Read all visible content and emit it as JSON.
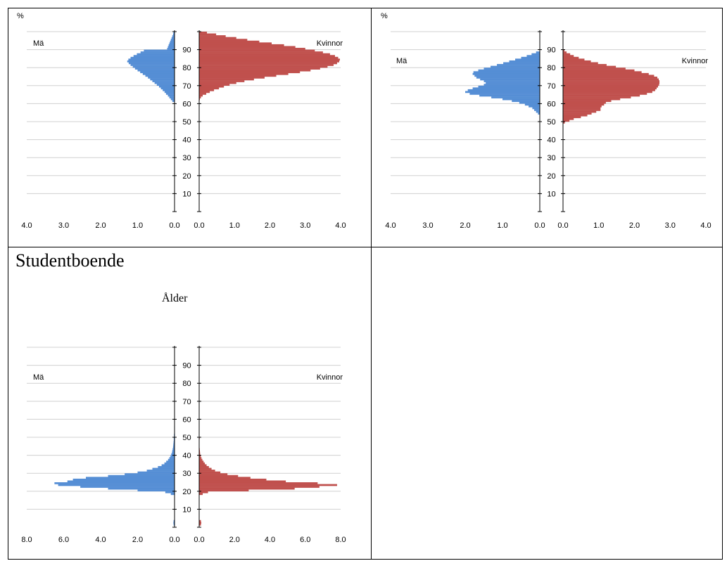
{
  "colors": {
    "men": "#558ed5",
    "women": "#c0504d",
    "grid": "#d0d0d0",
    "axis": "#000000"
  },
  "panels": [
    {
      "cell_title": "",
      "axis_title": "",
      "unit_label": "%",
      "men_label": "Mä",
      "women_label": "Kvinnor",
      "y_ticks": [
        "10",
        "20",
        "30",
        "40",
        "50",
        "60",
        "70",
        "80",
        "90"
      ],
      "x_ticks_left": [
        "4.0",
        "3.0",
        "2.0",
        "1.0",
        "0.0"
      ],
      "x_ticks_right": [
        "0.0",
        "1.0",
        "2.0",
        "3.0",
        "4.0"
      ]
    },
    {
      "cell_title": "",
      "axis_title": "",
      "unit_label": "%",
      "men_label": "Mä",
      "women_label": "Kvinnor",
      "y_ticks": [
        "10",
        "20",
        "30",
        "40",
        "50",
        "60",
        "70",
        "80",
        "90"
      ],
      "x_ticks_left": [
        "4.0",
        "3.0",
        "2.0",
        "1.0",
        "0.0"
      ],
      "x_ticks_right": [
        "0.0",
        "1.0",
        "2.0",
        "3.0",
        "4.0"
      ]
    },
    {
      "cell_title": "Studentboende",
      "axis_title": "Ålder",
      "unit_label": "",
      "men_label": "Mä",
      "women_label": "Kvinnor",
      "y_ticks": [
        "10",
        "20",
        "30",
        "40",
        "50",
        "60",
        "70",
        "80",
        "90"
      ],
      "x_ticks_left": [
        "8.0",
        "6.0",
        "4.0",
        "2.0",
        "0.0"
      ],
      "x_ticks_right": [
        "0.0",
        "2.0",
        "4.0",
        "6.0",
        "8.0"
      ]
    }
  ],
  "chart_data": [
    {
      "type": "bar",
      "orientation": "horizontal",
      "age_range": [
        0,
        100
      ],
      "xlim": [
        0,
        4
      ],
      "ylabel": "%",
      "grid": true,
      "series": [
        {
          "name": "Mä",
          "side": "left",
          "points": [
            [
              60,
              0.01
            ],
            [
              61,
              0.06
            ],
            [
              62,
              0.1
            ],
            [
              63,
              0.14
            ],
            [
              64,
              0.18
            ],
            [
              65,
              0.23
            ],
            [
              66,
              0.27
            ],
            [
              67,
              0.32
            ],
            [
              68,
              0.37
            ],
            [
              69,
              0.42
            ],
            [
              70,
              0.48
            ],
            [
              71,
              0.54
            ],
            [
              72,
              0.6
            ],
            [
              73,
              0.66
            ],
            [
              74,
              0.72
            ],
            [
              75,
              0.79
            ],
            [
              76,
              0.86
            ],
            [
              77,
              0.93
            ],
            [
              78,
              1.0
            ],
            [
              79,
              1.07
            ],
            [
              80,
              1.13
            ],
            [
              81,
              1.19
            ],
            [
              82,
              1.24
            ],
            [
              83,
              1.28
            ],
            [
              84,
              1.25
            ],
            [
              85,
              1.19
            ],
            [
              86,
              1.11
            ],
            [
              87,
              1.02
            ],
            [
              88,
              0.92
            ],
            [
              89,
              0.83
            ],
            [
              90,
              0.2
            ],
            [
              91,
              0.18
            ],
            [
              92,
              0.16
            ],
            [
              93,
              0.14
            ],
            [
              94,
              0.12
            ],
            [
              95,
              0.1
            ],
            [
              96,
              0.08
            ],
            [
              97,
              0.06
            ],
            [
              98,
              0.04
            ],
            [
              99,
              0.03
            ]
          ]
        },
        {
          "name": "Kvinnor",
          "side": "right",
          "points": [
            [
              62,
              0.02
            ],
            [
              63,
              0.05
            ],
            [
              64,
              0.1
            ],
            [
              65,
              0.2
            ],
            [
              66,
              0.3
            ],
            [
              67,
              0.42
            ],
            [
              68,
              0.56
            ],
            [
              69,
              0.7
            ],
            [
              70,
              0.86
            ],
            [
              71,
              1.05
            ],
            [
              72,
              1.28
            ],
            [
              73,
              1.55
            ],
            [
              74,
              1.85
            ],
            [
              75,
              2.18
            ],
            [
              76,
              2.52
            ],
            [
              77,
              2.85
            ],
            [
              78,
              3.15
            ],
            [
              79,
              3.42
            ],
            [
              80,
              3.63
            ],
            [
              81,
              3.8
            ],
            [
              82,
              3.9
            ],
            [
              83,
              3.96
            ],
            [
              84,
              3.98
            ],
            [
              85,
              3.93
            ],
            [
              86,
              3.84
            ],
            [
              87,
              3.7
            ],
            [
              88,
              3.5
            ],
            [
              89,
              3.27
            ],
            [
              90,
              3.0
            ],
            [
              91,
              2.72
            ],
            [
              92,
              2.4
            ],
            [
              93,
              2.05
            ],
            [
              94,
              1.7
            ],
            [
              95,
              1.36
            ],
            [
              96,
              1.05
            ],
            [
              97,
              0.75
            ],
            [
              98,
              0.48
            ],
            [
              99,
              0.22
            ]
          ]
        }
      ]
    },
    {
      "type": "bar",
      "orientation": "horizontal",
      "age_range": [
        0,
        100
      ],
      "xlim": [
        0,
        4
      ],
      "ylabel": "%",
      "grid": true,
      "series": [
        {
          "name": "Mä",
          "side": "left",
          "points": [
            [
              54,
              0.05
            ],
            [
              55,
              0.1
            ],
            [
              56,
              0.15
            ],
            [
              57,
              0.2
            ],
            [
              58,
              0.3
            ],
            [
              59,
              0.4
            ],
            [
              60,
              0.55
            ],
            [
              61,
              0.75
            ],
            [
              62,
              1.0
            ],
            [
              63,
              1.3
            ],
            [
              64,
              1.62
            ],
            [
              65,
              1.88
            ],
            [
              66,
              2.0
            ],
            [
              67,
              1.93
            ],
            [
              68,
              1.8
            ],
            [
              69,
              1.65
            ],
            [
              70,
              1.5
            ],
            [
              71,
              1.45
            ],
            [
              72,
              1.5
            ],
            [
              73,
              1.6
            ],
            [
              74,
              1.7
            ],
            [
              75,
              1.75
            ],
            [
              76,
              1.8
            ],
            [
              77,
              1.78
            ],
            [
              78,
              1.65
            ],
            [
              79,
              1.5
            ],
            [
              80,
              1.32
            ],
            [
              81,
              1.15
            ],
            [
              82,
              0.98
            ],
            [
              83,
              0.82
            ],
            [
              84,
              0.66
            ],
            [
              85,
              0.5
            ],
            [
              86,
              0.35
            ],
            [
              87,
              0.22
            ],
            [
              88,
              0.1
            ]
          ]
        },
        {
          "name": "Kvinnor",
          "side": "right",
          "points": [
            [
              49,
              0.05
            ],
            [
              50,
              0.18
            ],
            [
              51,
              0.3
            ],
            [
              52,
              0.5
            ],
            [
              53,
              0.68
            ],
            [
              54,
              0.8
            ],
            [
              55,
              0.93
            ],
            [
              56,
              1.05
            ],
            [
              57,
              1.05
            ],
            [
              58,
              1.08
            ],
            [
              59,
              1.15
            ],
            [
              60,
              1.2
            ],
            [
              61,
              1.35
            ],
            [
              62,
              1.6
            ],
            [
              63,
              1.9
            ],
            [
              64,
              2.15
            ],
            [
              65,
              2.35
            ],
            [
              66,
              2.5
            ],
            [
              67,
              2.58
            ],
            [
              68,
              2.62
            ],
            [
              69,
              2.66
            ],
            [
              70,
              2.69
            ],
            [
              71,
              2.7
            ],
            [
              72,
              2.7
            ],
            [
              73,
              2.68
            ],
            [
              74,
              2.64
            ],
            [
              75,
              2.55
            ],
            [
              76,
              2.4
            ],
            [
              77,
              2.2
            ],
            [
              78,
              2.0
            ],
            [
              79,
              1.75
            ],
            [
              80,
              1.48
            ],
            [
              81,
              1.22
            ],
            [
              82,
              0.98
            ],
            [
              83,
              0.78
            ],
            [
              84,
              0.6
            ],
            [
              85,
              0.44
            ],
            [
              86,
              0.3
            ],
            [
              87,
              0.2
            ],
            [
              88,
              0.1
            ],
            [
              89,
              0.04
            ]
          ]
        }
      ]
    },
    {
      "type": "bar",
      "orientation": "horizontal",
      "age_range": [
        0,
        100
      ],
      "xlim": [
        0,
        8
      ],
      "title": "Studentboende",
      "ylabel": "Ålder",
      "grid": true,
      "series": [
        {
          "name": "Mä",
          "side": "left",
          "points": [
            [
              1,
              0.05
            ],
            [
              2,
              0.06
            ],
            [
              3,
              0.05
            ],
            [
              18,
              0.2
            ],
            [
              19,
              0.5
            ],
            [
              20,
              2.0
            ],
            [
              21,
              3.6
            ],
            [
              22,
              5.1
            ],
            [
              23,
              6.3
            ],
            [
              24,
              6.5
            ],
            [
              25,
              5.8
            ],
            [
              26,
              5.5
            ],
            [
              27,
              4.8
            ],
            [
              28,
              3.6
            ],
            [
              29,
              2.7
            ],
            [
              30,
              2.0
            ],
            [
              31,
              1.5
            ],
            [
              32,
              1.2
            ],
            [
              33,
              0.9
            ],
            [
              34,
              0.7
            ],
            [
              35,
              0.55
            ],
            [
              36,
              0.45
            ],
            [
              37,
              0.35
            ],
            [
              38,
              0.28
            ],
            [
              39,
              0.22
            ],
            [
              40,
              0.18
            ],
            [
              41,
              0.14
            ],
            [
              42,
              0.12
            ],
            [
              43,
              0.1
            ],
            [
              44,
              0.08
            ],
            [
              45,
              0.07
            ],
            [
              46,
              0.06
            ],
            [
              47,
              0.05
            ],
            [
              48,
              0.04
            ],
            [
              49,
              0.04
            ],
            [
              50,
              0.03
            ],
            [
              51,
              0.03
            ],
            [
              52,
              0.02
            ],
            [
              53,
              0.02
            ],
            [
              54,
              0.02
            ],
            [
              55,
              0.02
            ],
            [
              56,
              0.01
            ],
            [
              57,
              0.01
            ],
            [
              58,
              0.01
            ],
            [
              59,
              0.01
            ],
            [
              60,
              0.01
            ]
          ]
        },
        {
          "name": "Kvinnor",
          "side": "right",
          "points": [
            [
              1,
              0.1
            ],
            [
              2,
              0.12
            ],
            [
              3,
              0.1
            ],
            [
              18,
              0.2
            ],
            [
              19,
              0.5
            ],
            [
              20,
              2.8
            ],
            [
              21,
              5.4
            ],
            [
              22,
              6.8
            ],
            [
              23,
              7.8
            ],
            [
              24,
              6.7
            ],
            [
              25,
              4.9
            ],
            [
              26,
              3.8
            ],
            [
              27,
              2.9
            ],
            [
              28,
              2.2
            ],
            [
              29,
              1.6
            ],
            [
              30,
              1.2
            ],
            [
              31,
              0.9
            ],
            [
              32,
              0.7
            ],
            [
              33,
              0.55
            ],
            [
              34,
              0.42
            ],
            [
              35,
              0.32
            ],
            [
              36,
              0.25
            ],
            [
              37,
              0.18
            ],
            [
              38,
              0.13
            ],
            [
              39,
              0.09
            ],
            [
              40,
              0.06
            ],
            [
              41,
              0.05
            ],
            [
              42,
              0.04
            ],
            [
              43,
              0.03
            ],
            [
              44,
              0.02
            ],
            [
              45,
              0.02
            ],
            [
              46,
              0.02
            ],
            [
              47,
              0.02
            ],
            [
              48,
              0.02
            ],
            [
              49,
              0.03
            ],
            [
              50,
              0.02
            ]
          ]
        }
      ]
    }
  ]
}
